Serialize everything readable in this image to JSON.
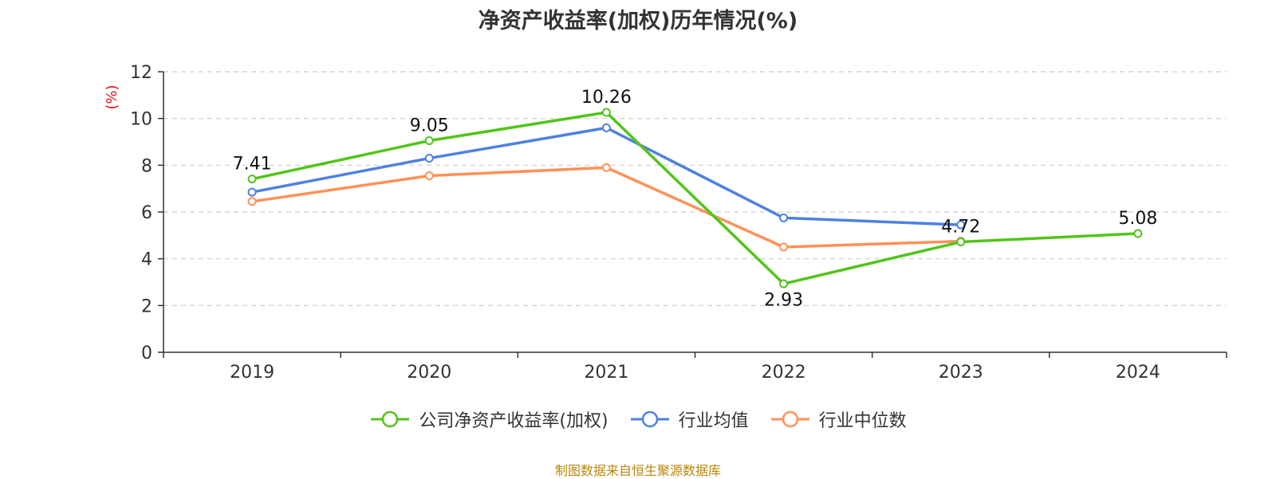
{
  "chart_data": {
    "type": "line",
    "title": "净资产收益率(加权)历年情况(%)",
    "ylabel": "(%)",
    "xlabel": "",
    "categories": [
      "2019",
      "2020",
      "2021",
      "2022",
      "2023",
      "2024"
    ],
    "ylim": [
      0,
      12
    ],
    "yticks": [
      0,
      2,
      4,
      6,
      8,
      10,
      12
    ],
    "grid": true,
    "legend_position": "bottom",
    "series": [
      {
        "name": "公司净资产收益率(加权)",
        "color": "#52c41a",
        "values": [
          7.41,
          9.05,
          10.26,
          2.93,
          4.72,
          5.08
        ],
        "labels": [
          "7.41",
          "9.05",
          "10.26",
          "2.93",
          "4.72",
          "5.08"
        ]
      },
      {
        "name": "行业均值",
        "color": "#4f81e0",
        "values": [
          6.85,
          8.3,
          9.6,
          5.75,
          5.45,
          null
        ]
      },
      {
        "name": "行业中位数",
        "color": "#ff9157",
        "values": [
          6.45,
          7.55,
          7.9,
          4.5,
          4.75,
          null
        ]
      }
    ]
  },
  "source": "制图数据来自恒生聚源数据库"
}
